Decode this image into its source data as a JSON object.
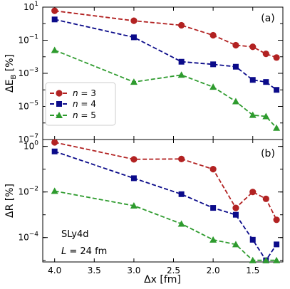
{
  "chart_data": [
    {
      "type": "line",
      "panel_label": "(a)",
      "ylabel_main": "ΔE",
      "ylabel_sub": "B",
      "ylabel_unit": " [%]",
      "yscale": "log",
      "ylim": [
        1e-07,
        10
      ],
      "yticks": [
        {
          "value": 10,
          "base": "10",
          "exp": "1"
        },
        {
          "value": 0.1,
          "base": "10",
          "exp": "−1"
        },
        {
          "value": 0.001,
          "base": "10",
          "exp": "−3"
        },
        {
          "value": 1e-05,
          "base": "10",
          "exp": "−5"
        },
        {
          "value": 1e-07,
          "base": "10",
          "exp": "−7"
        }
      ],
      "x": [
        4.0,
        3.0,
        2.4,
        2.0,
        1.714,
        1.5,
        1.333,
        1.2
      ],
      "series": [
        {
          "name": "n = 3",
          "color": "#b22222",
          "marker": "circle",
          "values": [
            6.0,
            1.5,
            0.8,
            0.2,
            0.05,
            0.04,
            0.015,
            0.009
          ]
        },
        {
          "name": "n = 4",
          "color": "#0b0b8a",
          "marker": "square",
          "values": [
            1.8,
            0.15,
            0.005,
            0.0035,
            0.0025,
            0.0004,
            0.0003,
            0.0001
          ]
        },
        {
          "name": "n = 5",
          "color": "#2e9b2e",
          "marker": "triangle",
          "values": [
            0.025,
            0.0003,
            0.0008,
            0.00015,
            2e-05,
            3e-06,
            2.5e-06,
            5e-07
          ]
        }
      ],
      "legend": {
        "placement": "lower-left",
        "entries": [
          {
            "prefix": "n",
            "suffix": " = 3"
          },
          {
            "prefix": "n",
            "suffix": " = 4"
          },
          {
            "prefix": "n",
            "suffix": " = 5"
          }
        ]
      }
    },
    {
      "type": "line",
      "panel_label": "(b)",
      "ylabel_main": "ΔR",
      "ylabel_sub": "",
      "ylabel_unit": " [%]",
      "yscale": "log",
      "ylim": [
        8.5e-06,
        2.0
      ],
      "yticks": [
        {
          "value": 1,
          "base": "10",
          "exp": "0"
        },
        {
          "value": 0.01,
          "base": "10",
          "exp": "−2"
        },
        {
          "value": 0.0001,
          "base": "10",
          "exp": "−4"
        }
      ],
      "x": [
        4.0,
        3.0,
        2.4,
        2.0,
        1.714,
        1.5,
        1.333,
        1.2
      ],
      "series": [
        {
          "name": "n = 3",
          "color": "#b22222",
          "marker": "circle",
          "values": [
            1.5,
            0.27,
            0.28,
            0.1,
            0.002,
            0.01,
            0.005,
            0.0006
          ]
        },
        {
          "name": "n = 4",
          "color": "#0b0b8a",
          "marker": "square",
          "values": [
            0.6,
            0.04,
            0.008,
            0.002,
            0.001,
            8e-05,
            1e-05,
            5e-05
          ]
        },
        {
          "name": "n = 5",
          "color": "#2e9b2e",
          "marker": "triangle",
          "values": [
            0.011,
            0.0025,
            0.0004,
            8e-05,
            5e-05,
            1e-05,
            1e-05,
            1e-05
          ]
        }
      ],
      "annotations": [
        "SLy4d",
        "L = 24 fm"
      ]
    }
  ],
  "shared": {
    "xlabel": "Δx [fm]",
    "xlim": [
      4.15,
      1.12
    ],
    "xticks": [
      "4.0",
      "3.5",
      "3.0",
      "2.5",
      "2.0",
      "1.5"
    ],
    "xtick_values": [
      4.0,
      3.5,
      3.0,
      2.5,
      2.0,
      1.5
    ]
  },
  "annotation_text": {
    "model": "SLy4d",
    "box_prefix": "L",
    "box_suffix": " = 24 fm"
  }
}
